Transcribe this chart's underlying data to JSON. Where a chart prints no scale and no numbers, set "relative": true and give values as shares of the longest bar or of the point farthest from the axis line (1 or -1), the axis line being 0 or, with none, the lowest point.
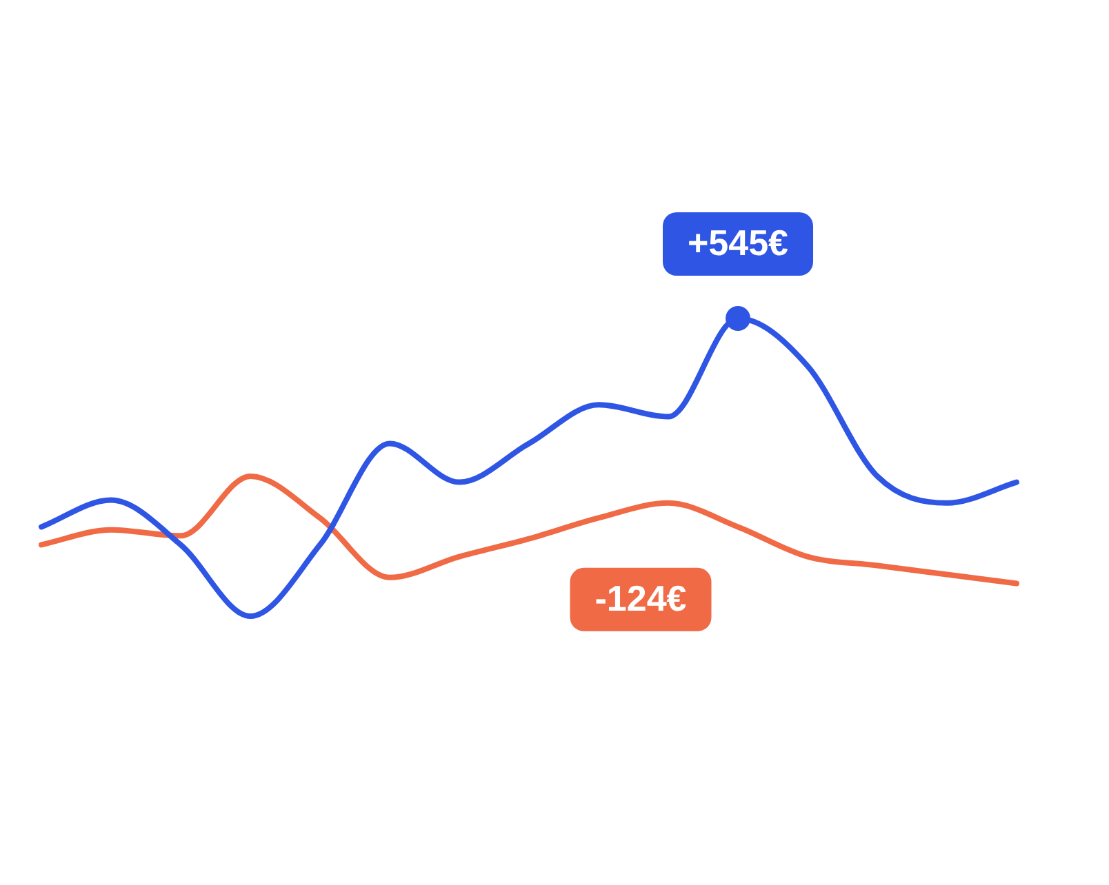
{
  "chart_data": {
    "type": "line",
    "relative": true,
    "tick_labels": false,
    "legend": false,
    "categories": [
      null,
      null,
      null,
      null,
      null,
      null,
      null,
      null,
      null,
      null,
      null,
      null,
      null,
      null,
      null
    ],
    "series": [
      {
        "color": "#2f55e4",
        "values": [
          0.3,
          0.39,
          0.24,
          0.0,
          0.24,
          0.58,
          0.45,
          0.58,
          0.71,
          0.67,
          1.0,
          0.84,
          0.47,
          0.38,
          0.45
        ]
      },
      {
        "color": "#ef6a45",
        "values": [
          0.24,
          0.29,
          0.27,
          0.47,
          0.33,
          0.13,
          0.2,
          0.26,
          0.33,
          0.38,
          0.3,
          0.2,
          0.17,
          0.14,
          0.11
        ]
      }
    ],
    "annotations": [
      "+545€",
      "-124€"
    ]
  }
}
